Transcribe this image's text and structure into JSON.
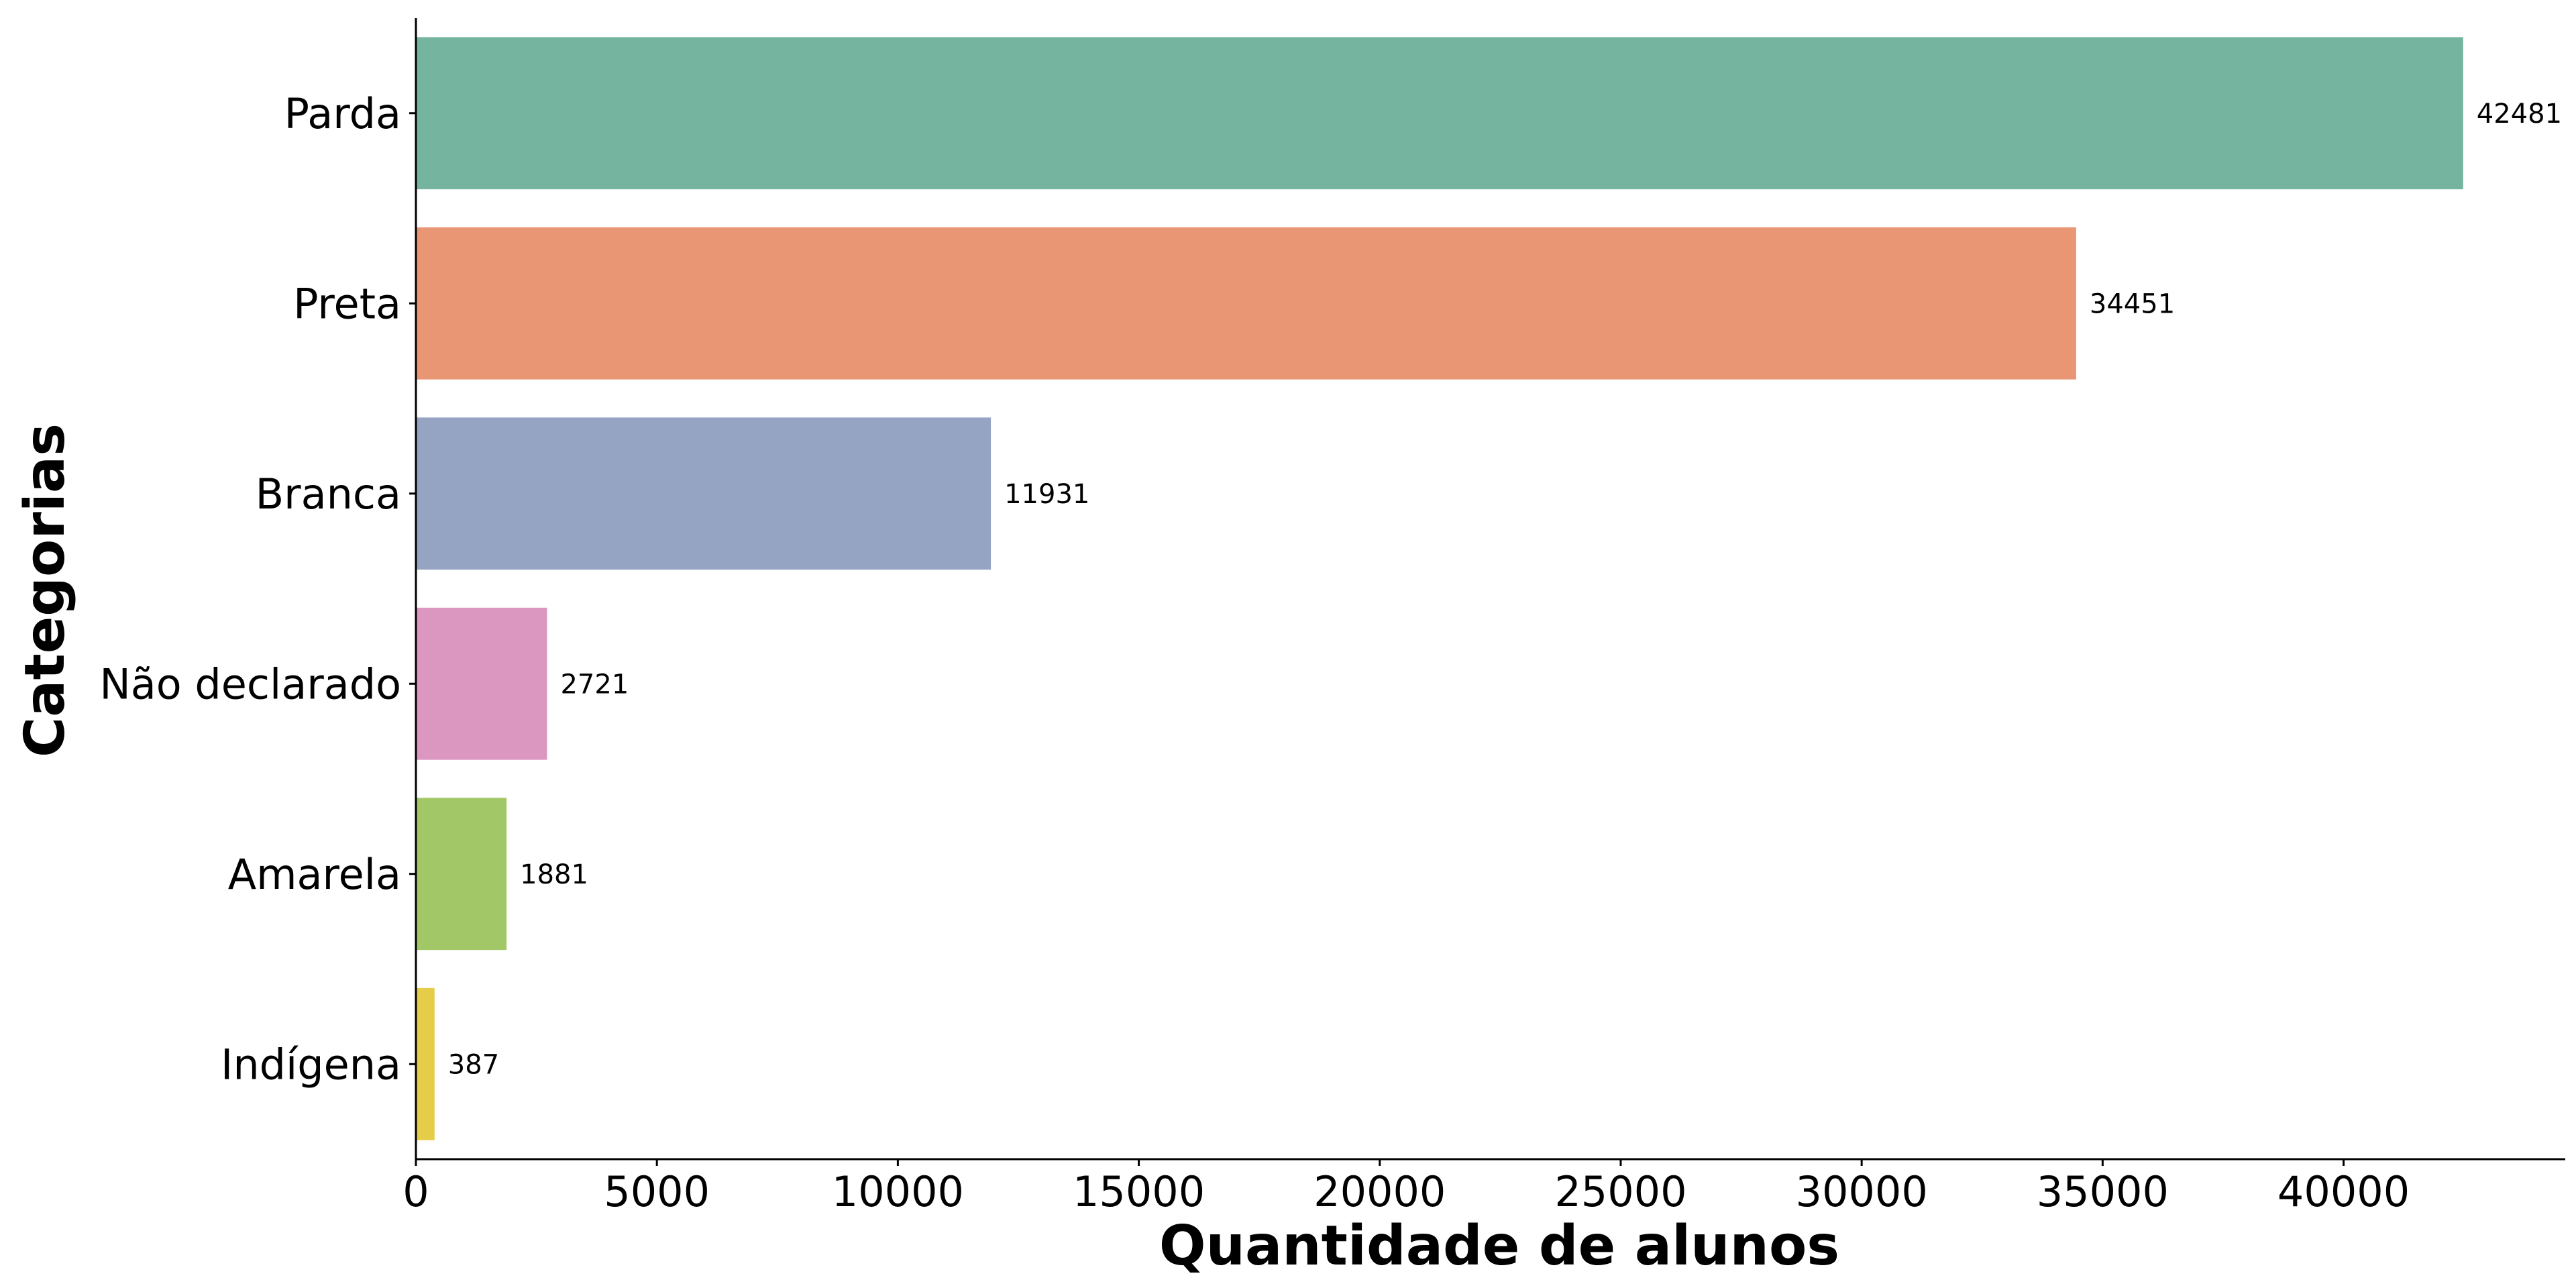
{
  "chart_data": {
    "type": "bar",
    "orientation": "horizontal",
    "categories": [
      "Parda",
      "Preta",
      "Branca",
      "Não declarado",
      "Amarela",
      "Indígena"
    ],
    "values": [
      42481,
      34451,
      11931,
      2721,
      1881,
      387
    ],
    "data_labels": [
      "42481",
      "34451",
      "11931",
      "2721",
      "1881",
      "387"
    ],
    "colors": [
      "#75b5a0",
      "#e99675",
      "#95a4c3",
      "#dc97c1",
      "#a2c766",
      "#e5cd49"
    ],
    "title": "",
    "xlabel": "Quantidade de alunos",
    "ylabel": "Categorias",
    "xlim": [
      0,
      44600
    ],
    "xticks": [
      0,
      5000,
      10000,
      15000,
      20000,
      25000,
      30000,
      35000,
      40000
    ],
    "xtick_labels": [
      "0",
      "5000",
      "10000",
      "15000",
      "20000",
      "25000",
      "30000",
      "35000",
      "40000"
    ],
    "grid": false,
    "legend": "none"
  }
}
